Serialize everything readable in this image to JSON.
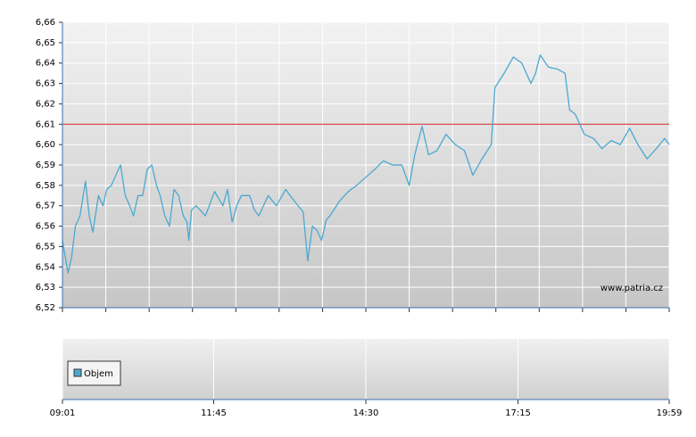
{
  "chart_data": {
    "type": "line",
    "x": [
      "09:01",
      "09:07",
      "09:11",
      "09:15",
      "09:20",
      "09:26",
      "09:30",
      "09:34",
      "09:40",
      "09:45",
      "09:49",
      "09:54",
      "09:59",
      "10:04",
      "10:09",
      "10:14",
      "10:18",
      "10:23",
      "10:28",
      "10:33",
      "10:38",
      "10:43",
      "10:47",
      "10:52",
      "10:57",
      "11:02",
      "11:07",
      "11:12",
      "11:16",
      "11:18",
      "11:21",
      "11:26",
      "11:36",
      "11:46",
      "11:55",
      "12:00",
      "12:05",
      "12:10",
      "12:15",
      "12:24",
      "12:29",
      "12:34",
      "12:44",
      "12:53",
      "13:03",
      "13:13",
      "13:22",
      "13:27",
      "13:32",
      "13:37",
      "13:42",
      "13:47",
      "13:51",
      "14:01",
      "14:11",
      "14:20",
      "14:30",
      "14:40",
      "14:49",
      "14:59",
      "15:09",
      "15:17",
      "15:23",
      "15:31",
      "15:38",
      "15:47",
      "15:57",
      "16:07",
      "16:17",
      "16:26",
      "16:36",
      "16:46",
      "16:50",
      "17:00",
      "17:10",
      "17:19",
      "17:29",
      "17:34",
      "17:39",
      "17:48",
      "17:58",
      "18:06",
      "18:11",
      "18:17",
      "18:27",
      "18:37",
      "18:46",
      "18:56",
      "19:06",
      "19:16",
      "19:25",
      "19:35",
      "19:45",
      "19:54",
      "19:59"
    ],
    "series": [
      {
        "color": "#4ba9d0",
        "values": [
          6.553,
          6.537,
          6.545,
          6.56,
          6.565,
          6.582,
          6.565,
          6.557,
          6.575,
          6.57,
          6.578,
          6.58,
          6.585,
          6.59,
          6.575,
          6.57,
          6.565,
          6.575,
          6.575,
          6.588,
          6.59,
          6.58,
          6.575,
          6.565,
          6.56,
          6.578,
          6.575,
          6.565,
          6.562,
          6.553,
          6.568,
          6.57,
          6.565,
          6.577,
          6.57,
          6.578,
          6.562,
          6.57,
          6.575,
          6.575,
          6.568,
          6.565,
          6.575,
          6.57,
          6.578,
          6.572,
          6.567,
          6.543,
          6.56,
          6.558,
          6.553,
          6.563,
          6.565,
          6.572,
          6.577,
          6.58,
          6.584,
          6.588,
          6.592,
          6.59,
          6.59,
          6.58,
          6.595,
          6.609,
          6.595,
          6.597,
          6.605,
          6.6,
          6.597,
          6.585,
          6.593,
          6.6,
          6.628,
          6.635,
          6.643,
          6.64,
          6.63,
          6.635,
          6.644,
          6.638,
          6.637,
          6.635,
          6.617,
          6.615,
          6.605,
          6.603,
          6.598,
          6.602,
          6.6,
          6.608,
          6.6,
          6.593,
          6.598,
          6.603,
          6.6
        ]
      }
    ],
    "reference_line": {
      "value": 6.61,
      "color": "#cc2222"
    },
    "xlim": [
      "09:01",
      "19:59"
    ],
    "xticks": [
      "09:01",
      "11:45",
      "14:30",
      "17:15",
      "19:59"
    ],
    "ylim": [
      6.52,
      6.66
    ],
    "yticks": [
      {
        "value": 6.52,
        "label": "6,52"
      },
      {
        "value": 6.53,
        "label": "6,53"
      },
      {
        "value": 6.54,
        "label": "6,54"
      },
      {
        "value": 6.55,
        "label": "6,55"
      },
      {
        "value": 6.56,
        "label": "6,56"
      },
      {
        "value": 6.57,
        "label": "6,57"
      },
      {
        "value": 6.58,
        "label": "6,58"
      },
      {
        "value": 6.59,
        "label": "6,59"
      },
      {
        "value": 6.6,
        "label": "6,60"
      },
      {
        "value": 6.61,
        "label": "6,61"
      },
      {
        "value": 6.62,
        "label": "6,62"
      },
      {
        "value": 6.63,
        "label": "6,63"
      },
      {
        "value": 6.64,
        "label": "6,64"
      },
      {
        "value": 6.65,
        "label": "6,65"
      },
      {
        "value": 6.66,
        "label": "6,66"
      }
    ],
    "grid": true,
    "watermark": "www.patria.cz",
    "volume_legend": "Objem"
  }
}
